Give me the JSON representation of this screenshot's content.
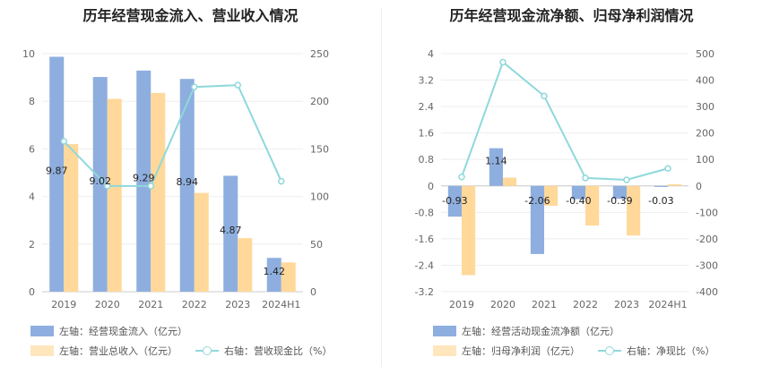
{
  "left_title": "历年经营现金流入、营业收入情况",
  "right_title": "历年经营现金流净额、归母净利润情况",
  "colors": {
    "bar1": "#8eaedf",
    "bar2": "#ffd89a",
    "line": "#8fd8db",
    "grid": "#eeeeee"
  },
  "legend_left": {
    "bar1": "左轴：经营现金流入（亿元）",
    "bar2": "左轴：营业总收入（亿元）",
    "line": "右轴：营收现金比（%）"
  },
  "legend_right": {
    "bar1": "左轴：经营活动现金流净额（亿元）",
    "bar2": "左轴：归母净利润（亿元）",
    "line": "右轴：净现比（%）"
  },
  "chart_data": [
    {
      "type": "bar",
      "title": "历年经营现金流入、营业收入情况",
      "categories": [
        "2019",
        "2020",
        "2021",
        "2022",
        "2023",
        "2024H1"
      ],
      "y_left": {
        "ticks": [
          0,
          2,
          4,
          6,
          8,
          10
        ],
        "range": [
          0,
          10
        ]
      },
      "y_right": {
        "ticks": [
          0,
          50,
          100,
          150,
          200,
          250
        ],
        "range": [
          0,
          250
        ]
      },
      "series": [
        {
          "name": "左轴：经营现金流入（亿元）",
          "axis": "left",
          "values": [
            9.87,
            9.02,
            9.29,
            8.94,
            4.87,
            1.42
          ],
          "labels": [
            "9.87",
            "9.02",
            "9.29",
            "8.94",
            "4.87",
            "1.42"
          ]
        },
        {
          "name": "左轴：营业总收入（亿元）",
          "axis": "left",
          "values": [
            6.2,
            8.1,
            8.35,
            4.15,
            2.25,
            1.23
          ]
        },
        {
          "name": "右轴：营收现金比（%）",
          "axis": "right",
          "type": "line",
          "values": [
            158,
            111,
            111,
            215,
            217,
            116
          ]
        }
      ]
    },
    {
      "type": "bar",
      "title": "历年经营现金流净额、归母净利润情况",
      "categories": [
        "2019",
        "2020",
        "2021",
        "2022",
        "2023",
        "2024H1"
      ],
      "y_left": {
        "ticks": [
          -3.2,
          -2.4,
          -1.6,
          -0.8,
          0,
          0.8,
          1.6,
          2.4,
          3.2,
          4
        ],
        "tick_labels": [
          "-3.2",
          "-2.4",
          "-1.6",
          "-0.8",
          "0",
          "0.8",
          "1.6",
          "2.4",
          "3.2",
          "4"
        ],
        "range": [
          -3.2,
          4
        ]
      },
      "y_right": {
        "ticks": [
          -400,
          -300,
          -200,
          -100,
          0,
          100,
          200,
          300,
          400,
          500
        ],
        "range": [
          -400,
          500
        ]
      },
      "series": [
        {
          "name": "左轴：经营活动现金流净额（亿元）",
          "axis": "left",
          "values": [
            -0.93,
            1.14,
            -2.06,
            -0.4,
            -0.39,
            -0.03
          ],
          "labels": [
            "-0.93",
            "1.14",
            "-2.06",
            "-0.40",
            "-0.39",
            "-0.03"
          ]
        },
        {
          "name": "左轴：归母净利润（亿元）",
          "axis": "left",
          "values": [
            -2.7,
            0.25,
            -0.6,
            -1.2,
            -1.5,
            0.05
          ]
        },
        {
          "name": "右轴：净现比（%）",
          "axis": "right",
          "type": "line",
          "values": [
            34,
            468,
            340,
            30,
            23,
            66
          ]
        }
      ]
    }
  ]
}
